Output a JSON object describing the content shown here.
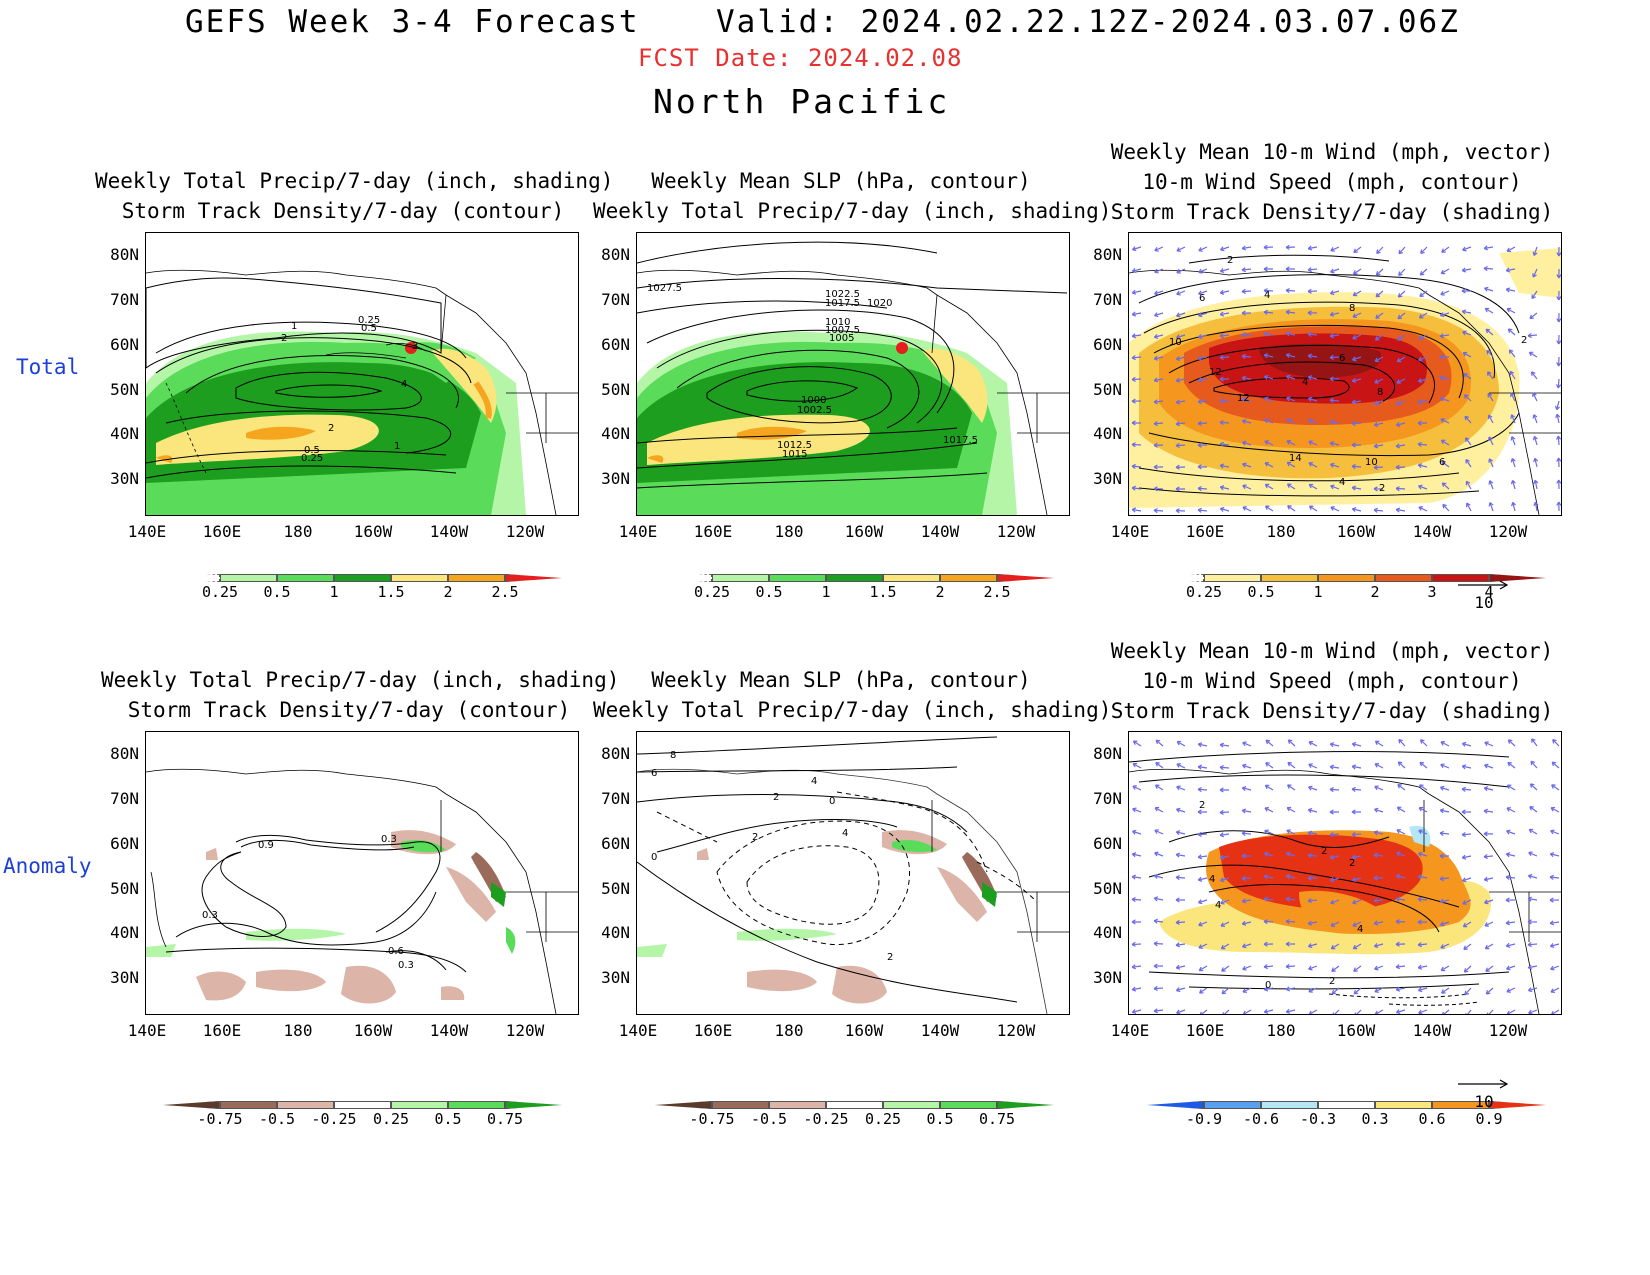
{
  "header": {
    "title": "GEFS Week 3-4 Forecast",
    "valid": "Valid: 2024.02.22.12Z-2024.03.07.06Z",
    "fcst_date": "FCST Date: 2024.02.08",
    "region": "North Pacific"
  },
  "rows": {
    "total": "Total",
    "anomaly": "Anomaly"
  },
  "titles": {
    "precip": [
      "Weekly Total Precip/7-day (inch, shading)",
      "Storm Track Density/7-day (contour)"
    ],
    "slp": [
      "Weekly Mean SLP (hPa, contour)",
      "Weekly Total Precip/7-day (inch, shading)"
    ],
    "wind": [
      "Weekly Mean 10-m Wind (mph, vector)",
      "10-m Wind Speed (mph, contour)",
      "Storm Track Density/7-day (shading)"
    ]
  },
  "axes": {
    "lat": [
      "80N",
      "70N",
      "60N",
      "50N",
      "40N",
      "30N"
    ],
    "lon": [
      "140E",
      "160E",
      "180",
      "160W",
      "140W",
      "120W"
    ]
  },
  "colorbars": {
    "total_precip": {
      "labels": [
        "0.25",
        "0.5",
        "1",
        "1.5",
        "2",
        "2.5"
      ],
      "colors": [
        "#ffffff",
        "#b4f5a8",
        "#5adc5a",
        "#1e9e1e",
        "#fae67d",
        "#f5a51e",
        "#e61e1e"
      ]
    },
    "total_storm": {
      "labels": [
        "0.25",
        "0.5",
        "1",
        "2",
        "3",
        "4"
      ],
      "colors": [
        "#ffffff",
        "#fff0a0",
        "#f5be3c",
        "#f5961e",
        "#e65a1e",
        "#c81414",
        "#961414"
      ]
    },
    "anom_precip": {
      "labels": [
        "-0.75",
        "-0.5",
        "-0.25",
        "0.25",
        "0.5",
        "0.75"
      ],
      "colors": [
        "#5a3a2a",
        "#9a6a5a",
        "#dcb4a8",
        "#ffffff",
        "#b4f5a8",
        "#5adc5a",
        "#1e9e1e"
      ]
    },
    "anom_storm": {
      "labels": [
        "-0.9",
        "-0.6",
        "-0.3",
        "0.3",
        "0.6",
        "0.9"
      ],
      "colors": [
        "#1e5ae6",
        "#5aa0f0",
        "#b4e6f5",
        "#ffffff",
        "#fae67d",
        "#f5961e",
        "#e63214"
      ]
    }
  },
  "vector_reference": "10",
  "contour_labels": {
    "total_precip": [
      "0.25",
      "0.5",
      "1",
      "2",
      "3",
      "4",
      "2",
      "1",
      "0.5",
      "0.25"
    ],
    "total_slp": [
      "1027.5",
      "1022.5",
      "1017.5",
      "1020",
      "1012.5",
      "1010",
      "1007.5",
      "1005",
      "1000",
      "1002.5",
      "1012.5",
      "1015",
      "1017.5"
    ],
    "total_wind": [
      "2",
      "4",
      "6",
      "8",
      "10",
      "12",
      "6",
      "4",
      "12",
      "8",
      "14",
      "10",
      "6",
      "4",
      "2",
      "2"
    ],
    "anom_precip": [
      "0.9",
      "0.3",
      "0.3",
      "0.6",
      "0.3"
    ],
    "anom_slp": [
      "8",
      "6",
      "4",
      "2",
      "0",
      "2",
      "4",
      "0",
      "2"
    ],
    "anom_wind": [
      "2",
      "4",
      "2",
      "2",
      "4",
      "4",
      "0",
      "2"
    ]
  },
  "colors": {
    "title_red": "#e8302f",
    "row_label_blue": "#1d3fd6",
    "vector_blue": "#6a6aea"
  }
}
